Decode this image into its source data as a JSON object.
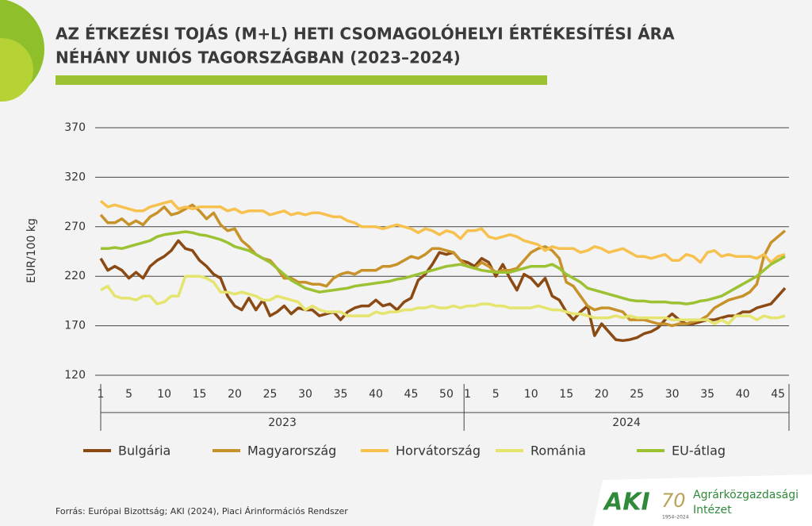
{
  "chart_data": {
    "type": "line",
    "title": [
      "AZ ÉTKEZÉSI TOJÁS (M+L) HETI CSOMAGOLÓHELYI ÉRTÉKESÍTÉSI ÁRA",
      "NÉHÁNY UNIÓS TAGORSZÁGBAN (2023–2024)"
    ],
    "y_label": "EUR/100 kg",
    "source": "Forrás: Európai Bizottság; AKI (2024), Piaci Árinformációs Rendszer",
    "groups": [
      "2023",
      "2024"
    ],
    "categories": [
      "1",
      null,
      null,
      null,
      "5",
      null,
      null,
      null,
      null,
      "10",
      null,
      null,
      null,
      null,
      "15",
      null,
      null,
      null,
      null,
      "20",
      null,
      null,
      null,
      null,
      "25",
      null,
      null,
      null,
      null,
      "30",
      null,
      null,
      null,
      null,
      "35",
      null,
      null,
      null,
      null,
      "40",
      null,
      null,
      null,
      null,
      "45",
      null,
      null,
      null,
      null,
      "50",
      null,
      null,
      "1",
      null,
      null,
      null,
      "5",
      null,
      null,
      null,
      null,
      "10",
      null,
      null,
      null,
      null,
      "15",
      null,
      null,
      null,
      null,
      "20",
      null,
      null,
      null,
      null,
      "25",
      null,
      null,
      null,
      null,
      "30",
      null,
      null,
      null,
      null,
      "35",
      null,
      null,
      null,
      null,
      "40",
      null,
      null,
      null,
      null,
      "45",
      null
    ],
    "ylim": [
      120,
      370
    ],
    "yticks": [
      120,
      170,
      220,
      270,
      320,
      370
    ],
    "grid": true,
    "series": [
      {
        "name": "Bulgária",
        "color": "#8b4a13",
        "values": [
          238,
          226,
          230,
          226,
          218,
          224,
          218,
          230,
          236,
          240,
          246,
          256,
          248,
          246,
          236,
          230,
          222,
          218,
          200,
          190,
          186,
          198,
          186,
          196,
          180,
          184,
          190,
          182,
          188,
          186,
          186,
          180,
          182,
          184,
          176,
          184,
          188,
          190,
          190,
          196,
          190,
          192,
          186,
          194,
          198,
          216,
          222,
          232,
          244,
          242,
          244,
          236,
          234,
          230,
          238,
          234,
          220,
          232,
          218,
          206,
          222,
          218,
          210,
          218,
          200,
          196,
          184,
          176,
          184,
          190,
          160,
          172,
          164,
          156,
          155,
          156,
          158,
          162,
          164,
          168,
          176,
          182,
          176,
          172,
          172,
          174,
          176,
          176,
          178,
          180,
          180,
          184,
          184,
          188,
          190,
          192,
          200,
          208
        ]
      },
      {
        "name": "Magyarország",
        "color": "#c8922a",
        "values": [
          282,
          274,
          274,
          278,
          272,
          276,
          272,
          280,
          284,
          290,
          282,
          284,
          288,
          292,
          286,
          278,
          284,
          272,
          266,
          268,
          256,
          250,
          242,
          238,
          236,
          228,
          218,
          218,
          214,
          214,
          212,
          212,
          210,
          218,
          222,
          224,
          222,
          226,
          226,
          226,
          230,
          230,
          232,
          236,
          240,
          238,
          242,
          248,
          248,
          246,
          244,
          236,
          230,
          228,
          234,
          230,
          224,
          226,
          226,
          228,
          236,
          244,
          248,
          250,
          246,
          238,
          214,
          210,
          200,
          190,
          186,
          188,
          188,
          186,
          184,
          176,
          176,
          176,
          174,
          172,
          172,
          170,
          172,
          172,
          174,
          176,
          180,
          188,
          192,
          196,
          198,
          200,
          204,
          212,
          240,
          254,
          260,
          266
        ]
      },
      {
        "name": "Horvátország",
        "color": "#f6c14e",
        "values": [
          296,
          290,
          292,
          290,
          288,
          286,
          286,
          290,
          292,
          294,
          296,
          288,
          290,
          288,
          290,
          290,
          290,
          290,
          286,
          288,
          284,
          286,
          286,
          286,
          282,
          284,
          286,
          282,
          284,
          282,
          284,
          284,
          282,
          280,
          280,
          276,
          274,
          270,
          270,
          270,
          268,
          270,
          272,
          270,
          268,
          264,
          268,
          266,
          262,
          266,
          264,
          258,
          266,
          266,
          268,
          260,
          258,
          260,
          262,
          260,
          256,
          254,
          252,
          246,
          250,
          248,
          248,
          248,
          244,
          246,
          250,
          248,
          244,
          246,
          248,
          244,
          240,
          240,
          238,
          240,
          242,
          236,
          236,
          242,
          240,
          234,
          244,
          246,
          240,
          242,
          240,
          240,
          240,
          238,
          242,
          234,
          240,
          242
        ]
      },
      {
        "name": "Románia",
        "color": "#e4e46e",
        "values": [
          206,
          210,
          200,
          198,
          198,
          196,
          200,
          200,
          192,
          194,
          200,
          200,
          220,
          220,
          220,
          218,
          214,
          204,
          204,
          202,
          204,
          202,
          200,
          196,
          196,
          200,
          198,
          196,
          194,
          186,
          190,
          186,
          184,
          184,
          184,
          180,
          180,
          180,
          180,
          184,
          182,
          184,
          184,
          186,
          186,
          188,
          188,
          190,
          188,
          188,
          190,
          188,
          190,
          190,
          192,
          192,
          190,
          190,
          188,
          188,
          188,
          188,
          190,
          188,
          186,
          186,
          184,
          182,
          182,
          180,
          178,
          178,
          178,
          180,
          178,
          180,
          178,
          178,
          178,
          178,
          178,
          176,
          176,
          176,
          176,
          176,
          176,
          172,
          176,
          172,
          180,
          180,
          180,
          176,
          180,
          178,
          178,
          180
        ]
      },
      {
        "name": "EU-átlag",
        "color": "#9cc234",
        "values": [
          248,
          248,
          249,
          248,
          250,
          252,
          254,
          256,
          260,
          262,
          263,
          264,
          265,
          264,
          262,
          261,
          259,
          257,
          254,
          250,
          248,
          246,
          242,
          238,
          234,
          228,
          222,
          216,
          212,
          208,
          206,
          204,
          205,
          206,
          207,
          208,
          210,
          211,
          212,
          213,
          214,
          215,
          217,
          218,
          220,
          222,
          224,
          226,
          228,
          230,
          231,
          232,
          230,
          228,
          226,
          225,
          224,
          224,
          224,
          226,
          228,
          230,
          230,
          230,
          232,
          228,
          222,
          218,
          214,
          208,
          206,
          204,
          202,
          200,
          198,
          196,
          195,
          195,
          194,
          194,
          194,
          193,
          193,
          192,
          193,
          195,
          196,
          198,
          200,
          204,
          208,
          212,
          216,
          220,
          226,
          232,
          236,
          240
        ]
      }
    ]
  },
  "logo": {
    "mark": "AKI",
    "anniversary": "70",
    "years": "1954–2024",
    "name_line1": "Agrárközgazdasági",
    "name_line2": "Intézet"
  }
}
